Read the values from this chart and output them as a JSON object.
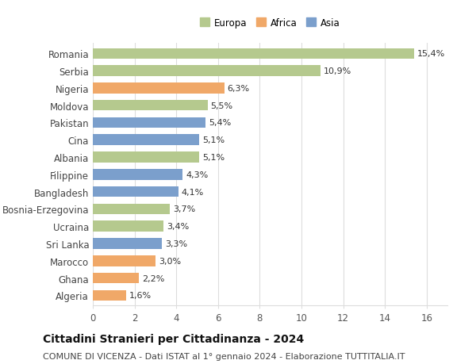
{
  "countries": [
    "Romania",
    "Serbia",
    "Nigeria",
    "Moldova",
    "Pakistan",
    "Cina",
    "Albania",
    "Filippine",
    "Bangladesh",
    "Bosnia-Erzegovina",
    "Ucraina",
    "Sri Lanka",
    "Marocco",
    "Ghana",
    "Algeria"
  ],
  "values": [
    15.4,
    10.9,
    6.3,
    5.5,
    5.4,
    5.1,
    5.1,
    4.3,
    4.1,
    3.7,
    3.4,
    3.3,
    3.0,
    2.2,
    1.6
  ],
  "labels": [
    "15,4%",
    "10,9%",
    "6,3%",
    "5,5%",
    "5,4%",
    "5,1%",
    "5,1%",
    "4,3%",
    "4,1%",
    "3,7%",
    "3,4%",
    "3,3%",
    "3,0%",
    "2,2%",
    "1,6%"
  ],
  "continents": [
    "Europa",
    "Europa",
    "Africa",
    "Europa",
    "Asia",
    "Asia",
    "Europa",
    "Asia",
    "Asia",
    "Europa",
    "Europa",
    "Asia",
    "Africa",
    "Africa",
    "Africa"
  ],
  "colors": {
    "Europa": "#b5c98e",
    "Africa": "#f0a868",
    "Asia": "#7b9fcc"
  },
  "xlim": [
    0,
    17
  ],
  "xticks": [
    0,
    2,
    4,
    6,
    8,
    10,
    12,
    14,
    16
  ],
  "title": "Cittadini Stranieri per Cittadinanza - 2024",
  "subtitle": "COMUNE DI VICENZA - Dati ISTAT al 1° gennaio 2024 - Elaborazione TUTTITALIA.IT",
  "background_color": "#ffffff",
  "bar_height": 0.62,
  "grid_color": "#dddddd",
  "label_fontsize": 8.0,
  "axis_label_fontsize": 8.5,
  "title_fontsize": 10.0,
  "subtitle_fontsize": 8.0
}
